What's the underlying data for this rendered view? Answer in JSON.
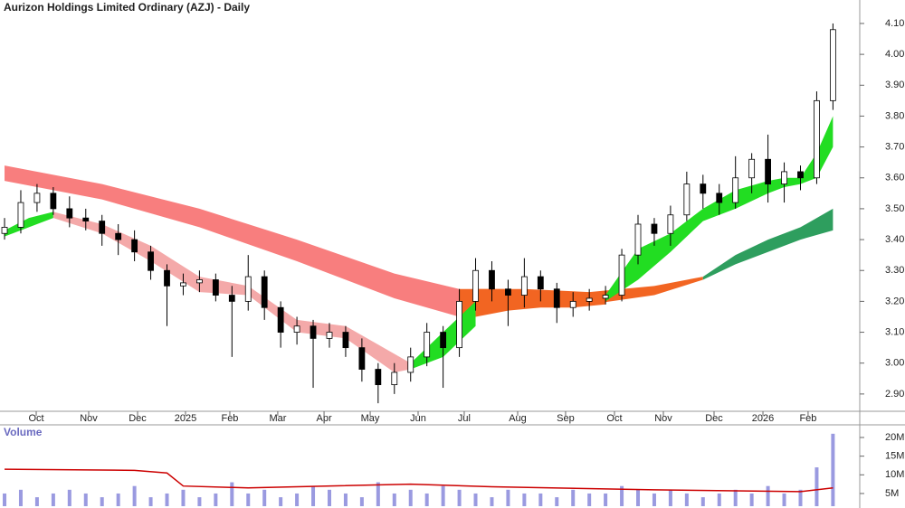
{
  "chart_data": [
    {
      "type": "candlestick",
      "title": "Aurizon Holdings Limited Ordinary (AZJ) - Daily",
      "xlim": [
        -0.28,
        52.65
      ],
      "ylim": [
        2.844,
        4.176
      ],
      "xticks": [
        {
          "value": 1.95,
          "label": "Oct"
        },
        {
          "value": 5.18,
          "label": "Nov"
        },
        {
          "value": 8.19,
          "label": "Dec"
        },
        {
          "value": 11.14,
          "label": "2025"
        },
        {
          "value": 13.87,
          "label": "Feb"
        },
        {
          "value": 16.82,
          "label": "Mar"
        },
        {
          "value": 19.67,
          "label": "Apr"
        },
        {
          "value": 22.51,
          "label": "May"
        },
        {
          "value": 25.46,
          "label": "Jun"
        },
        {
          "value": 28.3,
          "label": "Jul"
        },
        {
          "value": 31.59,
          "label": "Aug"
        },
        {
          "value": 34.54,
          "label": "Sep"
        },
        {
          "value": 37.55,
          "label": "Oct"
        },
        {
          "value": 40.56,
          "label": "Nov"
        },
        {
          "value": 43.68,
          "label": "Dec"
        },
        {
          "value": 46.69,
          "label": "2026"
        },
        {
          "value": 49.47,
          "label": "Feb"
        }
      ],
      "yticks": [
        {
          "value": 2.9,
          "label": "2.90"
        },
        {
          "value": 3.0,
          "label": "3.00"
        },
        {
          "value": 3.1,
          "label": "3.10"
        },
        {
          "value": 3.2,
          "label": "3.20"
        },
        {
          "value": 3.3,
          "label": "3.30"
        },
        {
          "value": 3.4,
          "label": "3.40"
        },
        {
          "value": 3.5,
          "label": "3.50"
        },
        {
          "value": 3.6,
          "label": "3.60"
        },
        {
          "value": 3.7,
          "label": "3.70"
        },
        {
          "value": 3.8,
          "label": "3.80"
        },
        {
          "value": 3.9,
          "label": "3.90"
        },
        {
          "value": 4.0,
          "label": "4.00"
        },
        {
          "value": 4.1,
          "label": "4.10"
        }
      ],
      "open": [
        3.42,
        3.44,
        3.52,
        3.55,
        3.5,
        3.47,
        3.46,
        3.42,
        3.4,
        3.36,
        3.3,
        3.25,
        3.26,
        3.27,
        3.22,
        3.2,
        3.28,
        3.18,
        3.1,
        3.12,
        3.08,
        3.1,
        3.05,
        2.98,
        2.93,
        2.97,
        3.02,
        3.1,
        3.05,
        3.2,
        3.3,
        3.24,
        3.22,
        3.28,
        3.24,
        3.18,
        3.2,
        3.21,
        3.22,
        3.35,
        3.45,
        3.42,
        3.48,
        3.58,
        3.55,
        3.52,
        3.6,
        3.66,
        3.58,
        3.62,
        3.6,
        3.85
      ],
      "high": [
        3.47,
        3.56,
        3.58,
        3.57,
        3.54,
        3.5,
        3.48,
        3.45,
        3.43,
        3.38,
        3.32,
        3.29,
        3.3,
        3.29,
        3.25,
        3.35,
        3.3,
        3.2,
        3.15,
        3.14,
        3.13,
        3.12,
        3.08,
        3.0,
        3.0,
        3.05,
        3.13,
        3.12,
        3.24,
        3.34,
        3.33,
        3.27,
        3.34,
        3.3,
        3.26,
        3.23,
        3.24,
        3.25,
        3.37,
        3.48,
        3.47,
        3.51,
        3.62,
        3.61,
        3.58,
        3.67,
        3.68,
        3.74,
        3.65,
        3.64,
        3.88,
        4.1
      ],
      "low": [
        3.4,
        3.42,
        3.49,
        3.48,
        3.44,
        3.43,
        3.38,
        3.35,
        3.33,
        3.27,
        3.12,
        3.22,
        3.23,
        3.2,
        3.02,
        3.17,
        3.14,
        3.05,
        3.06,
        2.92,
        3.05,
        3.02,
        2.94,
        2.87,
        2.9,
        2.94,
        2.99,
        2.92,
        3.02,
        3.17,
        3.2,
        3.12,
        3.18,
        3.2,
        3.13,
        3.15,
        3.17,
        3.19,
        3.2,
        3.32,
        3.38,
        3.38,
        3.46,
        3.5,
        3.48,
        3.5,
        3.55,
        3.52,
        3.52,
        3.56,
        3.58,
        3.82
      ],
      "close": [
        3.44,
        3.52,
        3.55,
        3.5,
        3.47,
        3.46,
        3.42,
        3.4,
        3.36,
        3.3,
        3.25,
        3.26,
        3.27,
        3.22,
        3.2,
        3.28,
        3.18,
        3.1,
        3.12,
        3.08,
        3.1,
        3.05,
        2.98,
        2.93,
        2.97,
        3.02,
        3.1,
        3.05,
        3.2,
        3.3,
        3.24,
        3.22,
        3.28,
        3.24,
        3.18,
        3.2,
        3.21,
        3.22,
        3.35,
        3.45,
        3.42,
        3.48,
        3.58,
        3.55,
        3.52,
        3.6,
        3.66,
        3.58,
        3.62,
        3.6,
        3.85,
        4.08
      ],
      "ribbons": [
        {
          "color": "#f87e7e",
          "x": [
            0,
            6,
            12,
            18,
            24,
            28
          ],
          "upper": [
            3.64,
            3.58,
            3.5,
            3.4,
            3.29,
            3.24
          ],
          "lower": [
            3.59,
            3.53,
            3.44,
            3.33,
            3.21,
            3.15
          ]
        },
        {
          "color": "#f26522",
          "x": [
            28,
            32,
            36,
            40,
            43
          ],
          "upper": [
            3.24,
            3.24,
            3.23,
            3.25,
            3.28
          ],
          "lower": [
            3.15,
            3.18,
            3.19,
            3.22,
            3.27
          ]
        },
        {
          "color": "#2e9e5e",
          "x": [
            43,
            45,
            47,
            49,
            51
          ],
          "upper": [
            3.28,
            3.35,
            3.4,
            3.44,
            3.5
          ],
          "lower": [
            3.27,
            3.32,
            3.36,
            3.4,
            3.43
          ]
        },
        {
          "color": "#22dd22",
          "x": [
            0,
            1.5,
            3
          ],
          "upper": [
            3.43,
            3.47,
            3.49
          ],
          "lower": [
            3.41,
            3.44,
            3.47
          ]
        },
        {
          "color": "#f4a9a9",
          "x": [
            3,
            6,
            9,
            12,
            15,
            18,
            21,
            24,
            25
          ],
          "upper": [
            3.49,
            3.45,
            3.38,
            3.28,
            3.25,
            3.14,
            3.12,
            3.03,
            3.0
          ],
          "lower": [
            3.47,
            3.42,
            3.33,
            3.23,
            3.22,
            3.1,
            3.08,
            2.97,
            2.98
          ]
        },
        {
          "color": "#22dd22",
          "x": [
            25,
            27,
            29
          ],
          "upper": [
            3.0,
            3.1,
            3.2
          ],
          "lower": [
            2.98,
            3.02,
            3.12
          ]
        },
        {
          "color": "#f26522",
          "x": [
            29,
            31,
            33,
            35,
            37
          ],
          "upper": [
            3.24,
            3.24,
            3.23,
            3.22,
            3.22
          ],
          "lower": [
            3.15,
            3.17,
            3.18,
            3.18,
            3.19
          ]
        },
        {
          "color": "#22dd22",
          "x": [
            37,
            39,
            41,
            43,
            45,
            47,
            48,
            49,
            50,
            51
          ],
          "upper": [
            3.22,
            3.37,
            3.42,
            3.5,
            3.56,
            3.59,
            3.6,
            3.6,
            3.68,
            3.8
          ],
          "lower": [
            3.2,
            3.27,
            3.36,
            3.46,
            3.5,
            3.55,
            3.57,
            3.58,
            3.6,
            3.7
          ]
        }
      ]
    },
    {
      "type": "volume",
      "title": "Volume",
      "ylim": [
        1.6,
        22.9
      ],
      "yticks": [
        {
          "value": 5,
          "label": "5M"
        },
        {
          "value": 10,
          "label": "10M"
        },
        {
          "value": 15,
          "label": "15M"
        },
        {
          "value": 20,
          "label": "20M"
        }
      ],
      "color": "#9a9ae0",
      "values": [
        5,
        6,
        4,
        5,
        6,
        5,
        4,
        5,
        7,
        4,
        5,
        6,
        4,
        5,
        8,
        5,
        6,
        4,
        5,
        7,
        6,
        5,
        4,
        8,
        5,
        6,
        5,
        7,
        6,
        5,
        4,
        6,
        5,
        5,
        4,
        6,
        5,
        5,
        7,
        6,
        5,
        6,
        5,
        4,
        5,
        6,
        5,
        7,
        5,
        6,
        12,
        21
      ],
      "average": {
        "color": "#cc0000",
        "x": [
          0,
          8,
          10,
          11,
          15,
          25,
          30,
          40,
          49,
          51
        ],
        "values": [
          11.5,
          11.2,
          10.5,
          7,
          6.5,
          7.5,
          6.8,
          6,
          5.5,
          6.5
        ]
      }
    }
  ]
}
